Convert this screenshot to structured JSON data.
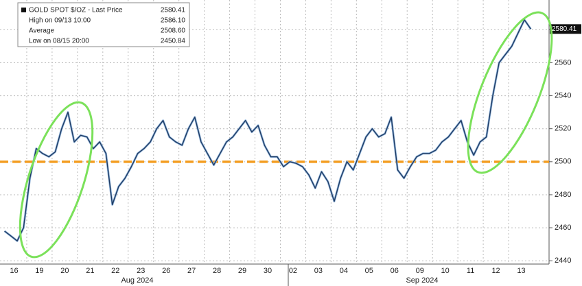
{
  "chart_data": {
    "type": "line",
    "categories": [
      "16",
      "19",
      "20",
      "21",
      "22",
      "23",
      "26",
      "27",
      "28",
      "29",
      "30",
      "02",
      "03",
      "04",
      "05",
      "06",
      "09",
      "10",
      "11",
      "12",
      "13"
    ],
    "x_group_labels": [
      "Aug 2024",
      "Sep 2024"
    ],
    "series": [
      {
        "name": "GOLD SPOT $/OZ - Last Price",
        "color": "#1f3b63",
        "values": [
          [
            2458,
            2455,
            2452,
            2460
          ],
          [
            2490,
            2508,
            2505,
            2503
          ],
          [
            2506,
            2520,
            2530,
            2512
          ],
          [
            2516,
            2515,
            2508,
            2512
          ],
          [
            2505,
            2474,
            2485,
            2490
          ],
          [
            2497,
            2505,
            2508,
            2512
          ],
          [
            2520,
            2525,
            2515,
            2512
          ],
          [
            2510,
            2520,
            2527,
            2512
          ],
          [
            2505,
            2498,
            2505,
            2512
          ],
          [
            2515,
            2520,
            2525,
            2518
          ],
          [
            2522,
            2510,
            2503,
            2503
          ],
          [
            2497,
            2500,
            2499,
            2497
          ],
          [
            2492,
            2484,
            2494,
            2488
          ],
          [
            2476,
            2490,
            2500,
            2495
          ],
          [
            2505,
            2515,
            2520,
            2515
          ],
          [
            2517,
            2527,
            2495,
            2490
          ],
          [
            2497,
            2503,
            2505,
            2505
          ],
          [
            2507,
            2512,
            2515,
            2520
          ],
          [
            2525,
            2512,
            2504,
            2512
          ],
          [
            2515,
            2540,
            2560,
            2565
          ],
          [
            2570,
            2578,
            2586,
            2580.41
          ]
        ]
      }
    ],
    "stats": [
      {
        "label": "GOLD SPOT $/OZ - Last Price",
        "value": 2580.41
      },
      {
        "label": "High on 09/13 10:00",
        "value": {
          "value": 2586.1,
          "label": "2586.10"
        }
      },
      {
        "label": "Average",
        "value": {
          "value": 2508.6,
          "label": "2508.60"
        }
      },
      {
        "label": "Low on 08/15 20:00",
        "value": 2450.84
      }
    ],
    "reference_line": {
      "value": 2500,
      "color": "#f39c1f"
    },
    "ylim": [
      2438,
      2598
    ],
    "yticks": [
      2440,
      2460,
      2480,
      2500,
      2520,
      2540,
      2560,
      2580
    ],
    "grid": true
  }
}
